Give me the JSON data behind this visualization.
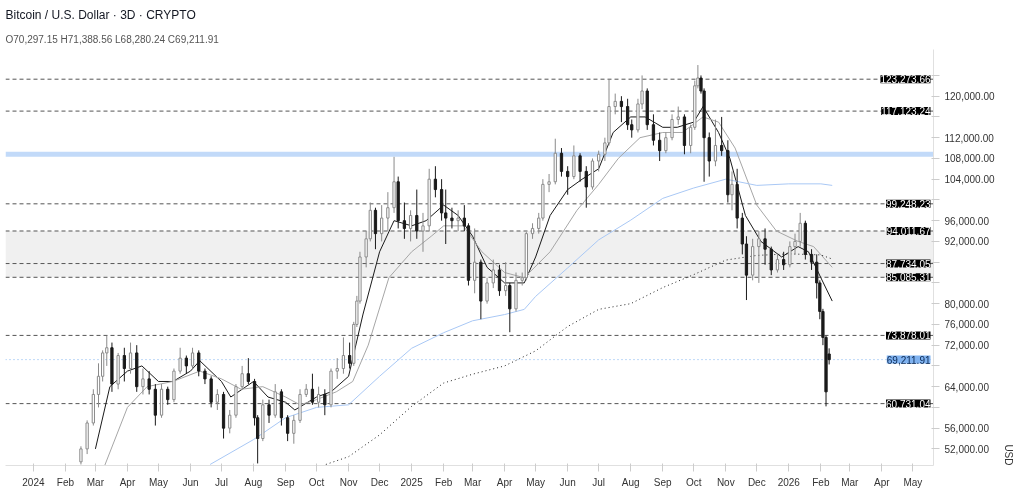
{
  "chart_data": {
    "type": "candlestick",
    "title": "Bitcoin / U.S. Dollar · 3D · CRYPTO",
    "subtitle": "O70,297.15 H71,388.56 L68,280.24 C69,211.91",
    "ylabel": "USD",
    "x": [
      "2024-02-16",
      "2024-02-22",
      "2024-02-28",
      "2024-03-04",
      "2024-03-08",
      "2024-03-12",
      "2024-03-17",
      "2024-03-23",
      "2024-03-29",
      "2024-04-04",
      "2024-04-10",
      "2024-04-16",
      "2024-04-22",
      "2024-04-28",
      "2024-05-04",
      "2024-05-10",
      "2024-05-16",
      "2024-05-22",
      "2024-05-28",
      "2024-06-03",
      "2024-06-09",
      "2024-06-15",
      "2024-06-21",
      "2024-06-27",
      "2024-07-03",
      "2024-07-09",
      "2024-07-15",
      "2024-07-21",
      "2024-07-27",
      "2024-08-02",
      "2024-08-05",
      "2024-08-10",
      "2024-08-16",
      "2024-08-22",
      "2024-08-28",
      "2024-09-03",
      "2024-09-09",
      "2024-09-15",
      "2024-09-21",
      "2024-09-27",
      "2024-10-03",
      "2024-10-09",
      "2024-10-15",
      "2024-10-21",
      "2024-10-27",
      "2024-11-02",
      "2024-11-06",
      "2024-11-09",
      "2024-11-12",
      "2024-11-18",
      "2024-11-22",
      "2024-11-27",
      "2024-12-03",
      "2024-12-09",
      "2024-12-15",
      "2024-12-19",
      "2024-12-25",
      "2024-12-31",
      "2025-01-06",
      "2025-01-12",
      "2025-01-18",
      "2025-01-24",
      "2025-01-30",
      "2025-02-03",
      "2025-02-09",
      "2025-02-15",
      "2025-02-21",
      "2025-02-25",
      "2025-03-03",
      "2025-03-09",
      "2025-03-15",
      "2025-03-21",
      "2025-03-27",
      "2025-04-02",
      "2025-04-06",
      "2025-04-12",
      "2025-04-18",
      "2025-04-22",
      "2025-04-28",
      "2025-05-04",
      "2025-05-08",
      "2025-05-14",
      "2025-05-20",
      "2025-05-26",
      "2025-06-01",
      "2025-06-07",
      "2025-06-13",
      "2025-06-19",
      "2025-06-25",
      "2025-07-01",
      "2025-07-07",
      "2025-07-11",
      "2025-07-17",
      "2025-07-23",
      "2025-07-29",
      "2025-08-02",
      "2025-08-08",
      "2025-08-12",
      "2025-08-17",
      "2025-08-23",
      "2025-08-29",
      "2025-09-04",
      "2025-09-10",
      "2025-09-16",
      "2025-09-22",
      "2025-09-28",
      "2025-10-02",
      "2025-10-05",
      "2025-10-08",
      "2025-10-11",
      "2025-10-16",
      "2025-10-22",
      "2025-10-28",
      "2025-11-03",
      "2025-11-07",
      "2025-11-12",
      "2025-11-17",
      "2025-11-21",
      "2025-11-27",
      "2025-12-03",
      "2025-12-09",
      "2025-12-15",
      "2025-12-21",
      "2025-12-27",
      "2026-01-02",
      "2026-01-07",
      "2026-01-12",
      "2026-01-17",
      "2026-01-23",
      "2026-01-28",
      "2026-01-31",
      "2026-02-03",
      "2026-02-06",
      "2026-02-09"
    ],
    "ohlc": [
      [
        49500,
        52500,
        49000,
        52000
      ],
      [
        52000,
        57500,
        51000,
        57000
      ],
      [
        57000,
        63500,
        56500,
        62500
      ],
      [
        62500,
        68500,
        60000,
        66000
      ],
      [
        66000,
        71000,
        65000,
        70500
      ],
      [
        70500,
        73800,
        68000,
        71500
      ],
      [
        71500,
        72500,
        63000,
        64500
      ],
      [
        64500,
        70500,
        63500,
        70000
      ],
      [
        70000,
        71500,
        65000,
        67500
      ],
      [
        67500,
        72500,
        66500,
        70500
      ],
      [
        70500,
        72000,
        63000,
        64000
      ],
      [
        64000,
        67500,
        62500,
        65500
      ],
      [
        65500,
        67000,
        62500,
        63500
      ],
      [
        63500,
        64500,
        56500,
        58500
      ],
      [
        58500,
        64500,
        58000,
        63500
      ],
      [
        63500,
        64000,
        60500,
        61500
      ],
      [
        61500,
        67500,
        61000,
        67000
      ],
      [
        67000,
        71500,
        66500,
        69500
      ],
      [
        69500,
        70000,
        66500,
        68000
      ],
      [
        68000,
        71500,
        67500,
        70500
      ],
      [
        70500,
        71000,
        66000,
        67000
      ],
      [
        67000,
        67500,
        64500,
        65500
      ],
      [
        65500,
        66000,
        60000,
        61000
      ],
      [
        61000,
        63500,
        59500,
        62500
      ],
      [
        62500,
        63000,
        54000,
        56000
      ],
      [
        56000,
        59500,
        55000,
        58500
      ],
      [
        58500,
        64500,
        58000,
        64000
      ],
      [
        64000,
        68000,
        63500,
        66500
      ],
      [
        66500,
        69500,
        64500,
        65000
      ],
      [
        65000,
        65500,
        56500,
        58000
      ],
      [
        58000,
        58500,
        49200,
        54000
      ],
      [
        54000,
        61500,
        53500,
        60500
      ],
      [
        60500,
        61500,
        57000,
        58500
      ],
      [
        58500,
        64500,
        58000,
        63000
      ],
      [
        63000,
        63500,
        56500,
        58000
      ],
      [
        58000,
        58500,
        53500,
        55000
      ],
      [
        55000,
        58500,
        53000,
        57500
      ],
      [
        57500,
        63500,
        57000,
        62500
      ],
      [
        62500,
        64500,
        62000,
        63500
      ],
      [
        63500,
        66500,
        60500,
        61000
      ],
      [
        61000,
        64000,
        60000,
        62500
      ],
      [
        62500,
        63500,
        58500,
        60500
      ],
      [
        60500,
        67500,
        60000,
        67000
      ],
      [
        67000,
        69500,
        65500,
        67500
      ],
      [
        67500,
        73500,
        66500,
        70000
      ],
      [
        70000,
        72500,
        67500,
        68500
      ],
      [
        68500,
        76500,
        68000,
        76000
      ],
      [
        76000,
        81500,
        75500,
        80500
      ],
      [
        80500,
        90000,
        80000,
        89000
      ],
      [
        89000,
        94000,
        87000,
        92500
      ],
      [
        92500,
        99500,
        92000,
        98000
      ],
      [
        98000,
        98500,
        90500,
        93500
      ],
      [
        93500,
        99000,
        92000,
        96500
      ],
      [
        96500,
        101500,
        94000,
        98500
      ],
      [
        98500,
        108300,
        97500,
        103500
      ],
      [
        103500,
        104500,
        94500,
        96000
      ],
      [
        96000,
        99500,
        92500,
        94500
      ],
      [
        94500,
        98000,
        92000,
        97000
      ],
      [
        97000,
        102000,
        92500,
        94000
      ],
      [
        94000,
        97500,
        90000,
        95000
      ],
      [
        95000,
        106000,
        94000,
        104000
      ],
      [
        104000,
        106500,
        100500,
        102000
      ],
      [
        102000,
        104000,
        96000,
        97500
      ],
      [
        97500,
        102000,
        91500,
        96500
      ],
      [
        96500,
        98500,
        94500,
        96000
      ],
      [
        96000,
        98000,
        94000,
        96500
      ],
      [
        96500,
        99000,
        94000,
        95000
      ],
      [
        95000,
        95500,
        83500,
        84500
      ],
      [
        84500,
        94500,
        82000,
        88000
      ],
      [
        88000,
        88500,
        77000,
        80500
      ],
      [
        80500,
        85000,
        80000,
        84000
      ],
      [
        84000,
        88500,
        83000,
        86500
      ],
      [
        86500,
        87500,
        81500,
        82500
      ],
      [
        82500,
        88000,
        81500,
        83500
      ],
      [
        83500,
        84000,
        74500,
        79000
      ],
      [
        79000,
        86000,
        78500,
        84500
      ],
      [
        84500,
        86000,
        83500,
        85000
      ],
      [
        85000,
        93800,
        84500,
        93500
      ],
      [
        93500,
        95500,
        92500,
        94500
      ],
      [
        94500,
        97500,
        93500,
        96500
      ],
      [
        96500,
        104000,
        96000,
        103000
      ],
      [
        103000,
        105000,
        101500,
        103500
      ],
      [
        103500,
        111800,
        103000,
        109000
      ],
      [
        109000,
        110000,
        104500,
        105500
      ],
      [
        105500,
        106500,
        101000,
        104500
      ],
      [
        104500,
        110500,
        104000,
        108500
      ],
      [
        108500,
        109000,
        103500,
        105500
      ],
      [
        105500,
        106500,
        98500,
        102500
      ],
      [
        102500,
        108000,
        102000,
        107500
      ],
      [
        107500,
        109500,
        105500,
        108800
      ],
      [
        108800,
        112000,
        107500,
        111000
      ],
      [
        111000,
        123200,
        110500,
        118000
      ],
      [
        118000,
        120500,
        116500,
        119000
      ],
      [
        119000,
        120000,
        115000,
        118000
      ],
      [
        118000,
        119500,
        113500,
        114500
      ],
      [
        114500,
        115500,
        112000,
        113500
      ],
      [
        113500,
        119500,
        113000,
        118500
      ],
      [
        118500,
        124000,
        117500,
        121000
      ],
      [
        121000,
        121500,
        113500,
        114500
      ],
      [
        114500,
        116500,
        110500,
        111500
      ],
      [
        111500,
        113000,
        107500,
        109500
      ],
      [
        109500,
        113000,
        109000,
        112000
      ],
      [
        112000,
        116500,
        111500,
        115500
      ],
      [
        115500,
        118000,
        114500,
        116000
      ],
      [
        116000,
        116500,
        108800,
        110500
      ],
      [
        110500,
        114500,
        109000,
        114000
      ],
      [
        114000,
        123000,
        113500,
        122000
      ],
      [
        122000,
        126000,
        121500,
        123500
      ],
      [
        123500,
        124000,
        120500,
        121000
      ],
      [
        121000,
        121500,
        103500,
        112000
      ],
      [
        112000,
        113000,
        104500,
        107500
      ],
      [
        107500,
        115500,
        106500,
        110500
      ],
      [
        110500,
        116000,
        108500,
        109500
      ],
      [
        109500,
        111500,
        99500,
        101000
      ],
      [
        101000,
        105500,
        98000,
        103000
      ],
      [
        103000,
        106000,
        94500,
        96500
      ],
      [
        96500,
        97500,
        89500,
        91500
      ],
      [
        91500,
        93000,
        80700,
        85500
      ],
      [
        85500,
        92500,
        84500,
        91000
      ],
      [
        91000,
        94000,
        84000,
        92500
      ],
      [
        92500,
        94500,
        87500,
        90500
      ],
      [
        90500,
        91000,
        85500,
        86500
      ],
      [
        86500,
        89500,
        86000,
        88500
      ],
      [
        88500,
        90000,
        86500,
        87500
      ],
      [
        87500,
        92000,
        87000,
        91000
      ],
      [
        91000,
        93500,
        89500,
        92000
      ],
      [
        92000,
        97500,
        91000,
        95500
      ],
      [
        95500,
        96000,
        88500,
        89500
      ],
      [
        89500,
        90500,
        86500,
        88000
      ],
      [
        88000,
        89500,
        81000,
        84000
      ],
      [
        84000,
        84500,
        77000,
        78500
      ],
      [
        78500,
        79000,
        72000,
        73500
      ],
      [
        73500,
        73800,
        60200,
        63000
      ],
      [
        70297.15,
        71388.56,
        68280.24,
        69211.91
      ]
    ],
    "series": [
      {
        "type": "line",
        "color": "#1a1a1a",
        "x": [
          "2024-03-01",
          "2024-03-15",
          "2024-04-01",
          "2024-04-15",
          "2024-05-01",
          "2024-05-15",
          "2024-06-01",
          "2024-06-10",
          "2024-07-01",
          "2024-07-10",
          "2024-08-01",
          "2024-08-15",
          "2024-09-01",
          "2024-09-10",
          "2024-10-01",
          "2024-10-15",
          "2024-11-01",
          "2024-11-15",
          "2024-12-01",
          "2024-12-15",
          "2025-01-01",
          "2025-01-15",
          "2025-02-01",
          "2025-02-15",
          "2025-03-01",
          "2025-03-15",
          "2025-04-01",
          "2025-04-20",
          "2025-05-01",
          "2025-05-15",
          "2025-06-01",
          "2025-06-15",
          "2025-07-01",
          "2025-07-15",
          "2025-08-01",
          "2025-08-15",
          "2025-09-01",
          "2025-09-15",
          "2025-10-01",
          "2025-10-10",
          "2025-10-25",
          "2025-11-05",
          "2025-11-20",
          "2025-12-05",
          "2025-12-25",
          "2026-01-10",
          "2026-01-20",
          "2026-02-01",
          "2026-02-12"
        ],
        "values": [
          52000,
          64000,
          67000,
          68000,
          65000,
          65000,
          67000,
          69000,
          65000,
          62000,
          65000,
          62000,
          61000,
          59500,
          62000,
          63000,
          66000,
          78000,
          90000,
          96000,
          95000,
          96000,
          99000,
          97000,
          93000,
          87000,
          84000,
          84000,
          89000,
          97000,
          102000,
          104000,
          106000,
          113000,
          116000,
          116000,
          114000,
          114000,
          115000,
          118000,
          113000,
          108000,
          97000,
          92000,
          89000,
          91000,
          90000,
          85000,
          80500
        ]
      },
      {
        "type": "line",
        "color": "#a6a6a6",
        "x": [
          "2024-03-10",
          "2024-04-01",
          "2024-04-20",
          "2024-05-15",
          "2024-06-10",
          "2024-07-01",
          "2024-07-20",
          "2024-08-10",
          "2024-09-01",
          "2024-09-15",
          "2024-10-01",
          "2024-10-20",
          "2024-11-05",
          "2024-11-20",
          "2024-12-10",
          "2025-01-01",
          "2025-01-20",
          "2025-02-01",
          "2025-02-20",
          "2025-03-10",
          "2025-04-01",
          "2025-04-20",
          "2025-05-15",
          "2025-06-10",
          "2025-07-01",
          "2025-07-20",
          "2025-08-10",
          "2025-09-01",
          "2025-09-20",
          "2025-10-10",
          "2025-10-25",
          "2025-11-10",
          "2025-12-01",
          "2025-12-20",
          "2026-01-10",
          "2026-01-25",
          "2026-02-12"
        ],
        "values": [
          48800,
          60000,
          64000,
          65000,
          67000,
          65500,
          63500,
          64000,
          62000,
          60500,
          61500,
          63000,
          65000,
          72000,
          85000,
          90000,
          93000,
          95000,
          95000,
          90000,
          86000,
          85000,
          90000,
          98000,
          103000,
          108000,
          112000,
          113000,
          113000,
          116000,
          115000,
          110000,
          99000,
          94000,
          92000,
          91000,
          87000
        ]
      },
      {
        "type": "line",
        "color": "#a9c8f5",
        "x": [
          "2024-06-20",
          "2024-08-01",
          "2024-09-01",
          "2024-10-01",
          "2024-11-01",
          "2024-12-01",
          "2025-01-01",
          "2025-02-01",
          "2025-03-01",
          "2025-04-01",
          "2025-04-20",
          "2025-05-01",
          "2025-06-01",
          "2025-07-01",
          "2025-08-01",
          "2025-09-01",
          "2025-10-01",
          "2025-11-01",
          "2025-12-01",
          "2026-01-01",
          "2026-02-01",
          "2026-02-12"
        ],
        "values": [
          49000,
          53800,
          58000,
          60000,
          60500,
          66000,
          71400,
          74400,
          76700,
          77900,
          78900,
          81400,
          86900,
          92300,
          96100,
          100300,
          102300,
          104000,
          102800,
          103100,
          103100,
          102800
        ]
      },
      {
        "type": "line",
        "color": "#222222",
        "line_style": "dotted",
        "x": [
          "2024-10-10",
          "2024-11-01",
          "2024-12-01",
          "2025-01-01",
          "2025-02-01",
          "2025-03-01",
          "2025-04-01",
          "2025-05-01",
          "2025-06-01",
          "2025-07-01",
          "2025-08-01",
          "2025-09-01",
          "2025-10-01",
          "2025-11-01",
          "2025-12-01",
          "2026-01-01",
          "2026-02-01",
          "2026-02-12"
        ],
        "values": [
          49000,
          50500,
          54700,
          60200,
          64700,
          66400,
          68000,
          70900,
          75600,
          78900,
          80000,
          83100,
          85600,
          88400,
          89300,
          89600,
          89400,
          88600
        ]
      }
    ],
    "ref_lines": [
      {
        "axis": "y",
        "value": 123273.66,
        "label": "123,273.66",
        "color": "#555555",
        "line_style": "dashed"
      },
      {
        "axis": "y",
        "value": 117123.24,
        "label": "117,123.24",
        "color": "#555555",
        "line_style": "dashed"
      },
      {
        "axis": "y",
        "value": 99248.23,
        "label": "99,248.23",
        "color": "#555555",
        "line_style": "dashed"
      },
      {
        "axis": "y",
        "value": 94011.67,
        "label": "94,011.67",
        "color": "#555555",
        "line_style": "dashed"
      },
      {
        "axis": "y",
        "value": 87734.05,
        "label": "87,734.05",
        "color": "#555555",
        "line_style": "dashed"
      },
      {
        "axis": "y",
        "value": 85085.31,
        "label": "85,085.31",
        "color": "#555555",
        "line_style": "dashed"
      },
      {
        "axis": "y",
        "value": 73878.01,
        "label": "73,878.01",
        "color": "#555555",
        "line_style": "dashed"
      },
      {
        "axis": "y",
        "value": 69211.91,
        "label": "69,211.91",
        "color": "#7fb2f0",
        "line_style": "dotted"
      },
      {
        "axis": "y",
        "value": 60731.04,
        "label": "60,731.04",
        "color": "#555555",
        "line_style": "dashed"
      }
    ],
    "bands": [
      {
        "axis": "y",
        "from": 85085.31,
        "to": 94011.67,
        "color": "#ececec"
      },
      {
        "axis": "y",
        "from": 108300,
        "to": 109300,
        "color": "#b3d1f7"
      }
    ],
    "xlim": [
      "2023-12-05",
      "2026-05-21"
    ],
    "xticks": [
      {
        "value": "2024-01-01",
        "label": "2024"
      },
      {
        "value": "2024-02-01",
        "label": "Feb"
      },
      {
        "value": "2024-03-01",
        "label": "Mar"
      },
      {
        "value": "2024-04-01",
        "label": "Apr"
      },
      {
        "value": "2024-05-01",
        "label": "May"
      },
      {
        "value": "2024-06-01",
        "label": "Jun"
      },
      {
        "value": "2024-07-01",
        "label": "Jul"
      },
      {
        "value": "2024-08-01",
        "label": "Aug"
      },
      {
        "value": "2024-09-01",
        "label": "Sep"
      },
      {
        "value": "2024-10-01",
        "label": "Oct"
      },
      {
        "value": "2024-11-01",
        "label": "Nov"
      },
      {
        "value": "2024-12-01",
        "label": "Dec"
      },
      {
        "value": "2025-01-01",
        "label": "2025"
      },
      {
        "value": "2025-02-01",
        "label": "Feb"
      },
      {
        "value": "2025-03-01",
        "label": "Mar"
      },
      {
        "value": "2025-04-01",
        "label": "Apr"
      },
      {
        "value": "2025-05-01",
        "label": "May"
      },
      {
        "value": "2025-06-01",
        "label": "Jun"
      },
      {
        "value": "2025-07-01",
        "label": "Jul"
      },
      {
        "value": "2025-08-01",
        "label": "Aug"
      },
      {
        "value": "2025-09-01",
        "label": "Sep"
      },
      {
        "value": "2025-10-01",
        "label": "Oct"
      },
      {
        "value": "2025-11-01",
        "label": "Nov"
      },
      {
        "value": "2025-12-01",
        "label": "Dec"
      },
      {
        "value": "2026-01-01",
        "label": "2026"
      },
      {
        "value": "2026-02-01",
        "label": "Feb"
      },
      {
        "value": "2026-03-01",
        "label": "Mar"
      },
      {
        "value": "2026-04-01",
        "label": "Apr"
      },
      {
        "value": "2026-05-01",
        "label": "May"
      }
    ],
    "ylim": [
      48800,
      129000
    ],
    "yticks": [
      {
        "value": 52000,
        "label": "52,000.00"
      },
      {
        "value": 56000,
        "label": "56,000.00"
      },
      {
        "value": 60000,
        "label": null
      },
      {
        "value": 64000,
        "label": "64,000.00"
      },
      {
        "value": 68000,
        "label": null
      },
      {
        "value": 72000,
        "label": "72,000.00"
      },
      {
        "value": 76000,
        "label": "76,000.00"
      },
      {
        "value": 80000,
        "label": "80,000.00"
      },
      {
        "value": 84000,
        "label": null
      },
      {
        "value": 88000,
        "label": null
      },
      {
        "value": 92000,
        "label": "92,000.00"
      },
      {
        "value": 96000,
        "label": "96,000.00"
      },
      {
        "value": 100000,
        "label": null
      },
      {
        "value": 104000,
        "label": "104,000.00"
      },
      {
        "value": 108000,
        "label": "108,000.00"
      },
      {
        "value": 112000,
        "label": "112,000.00"
      },
      {
        "value": 116000,
        "label": null
      },
      {
        "value": 120000,
        "label": "120,000.00"
      },
      {
        "value": 124000,
        "label": null
      }
    ]
  }
}
